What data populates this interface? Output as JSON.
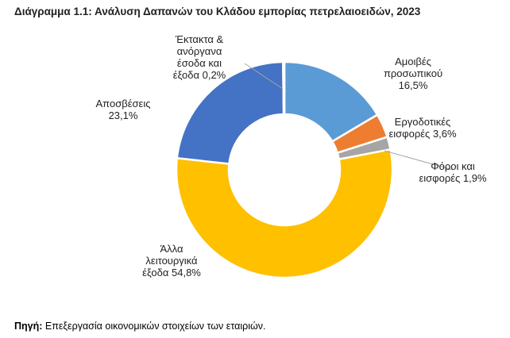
{
  "title": "Διάγραμμα 1.1: Ανάλυση Δαπανών του Κλάδου εμπορίας πετρελαιοειδών, 2023",
  "source": {
    "label": "Πηγή:",
    "text": " Επεξεργασία οικονομικών στοιχείων των εταιριών."
  },
  "chart_data": {
    "type": "pie",
    "variant": "donut",
    "title": "Διάγραμμα 1.1: Ανάλυση Δαπανών του Κλάδου εμπορίας πετρελαιοειδών, 2023",
    "slices": [
      {
        "name": "Αμοιβές προσωπικού",
        "value": 16.5,
        "color": "#5B9BD5",
        "label_lines": [
          "Αμοιβές",
          "προσωπικού",
          "16,5%"
        ]
      },
      {
        "name": "Εργοδοτικές εισφορές",
        "value": 3.6,
        "color": "#ED7D31",
        "label_lines": [
          "Εργοδοτικές",
          "εισφορές 3,6%"
        ]
      },
      {
        "name": "Φόροι και εισφορές",
        "value": 1.9,
        "color": "#A5A5A5",
        "label_lines": [
          "Φόροι και",
          "εισφορές 1,9%"
        ]
      },
      {
        "name": "Άλλα λειτουργικά έξοδα",
        "value": 54.8,
        "color": "#FFC000",
        "label_lines": [
          "Άλλα",
          "λειτουργικά",
          "έξοδα 54,8%"
        ]
      },
      {
        "name": "Αποσβέσεις",
        "value": 23.1,
        "color": "#4472C4",
        "label_lines": [
          "Αποσβέσεις",
          "23,1%"
        ]
      },
      {
        "name": "Έκτακτα & ανόργανα έσοδα και έξοδα",
        "value": 0.2,
        "color": "#264478",
        "label_lines": [
          "Έκτακτα &",
          "ανόργανα",
          "έσοδα και",
          "έξοδα 0,2%"
        ]
      }
    ],
    "legend": "none"
  }
}
